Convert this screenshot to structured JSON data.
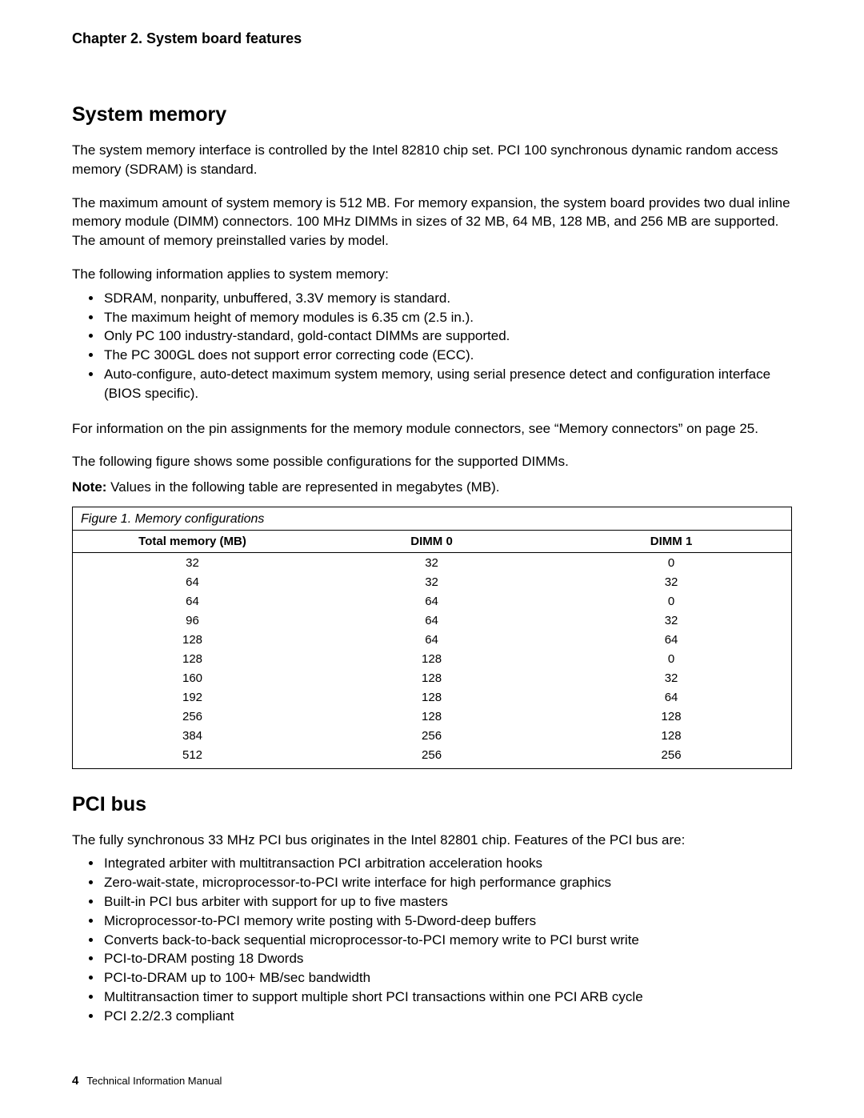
{
  "chapter": "Chapter 2.  System board features",
  "section1": {
    "heading": "System memory",
    "p1": "The system memory interface is controlled by the Intel 82810 chip set.  PCI 100 synchronous dynamic random access memory (SDRAM) is standard.",
    "p2": "The maximum amount of system memory is 512 MB.  For memory expansion, the system board provides two dual inline memory module (DIMM) connectors.  100 MHz DIMMs in sizes of 32 MB, 64 MB, 128 MB, and 256 MB are supported.  The amount of memory preinstalled varies by model.",
    "p3": "The following information applies to system memory:",
    "bullets": [
      "SDRAM, nonparity, unbuffered, 3.3V memory is standard.",
      "The maximum height of memory modules is 6.35 cm (2.5 in.).",
      "Only PC 100 industry-standard, gold-contact DIMMs are supported.",
      "The PC 300GL does not support error correcting code (ECC).",
      "Auto-configure, auto-detect maximum system memory, using serial presence detect and configuration interface (BIOS specific)."
    ],
    "p4": "For information on the pin assignments for the memory module connectors, see “Memory connectors” on page  25.",
    "p5": "The following figure shows some possible configurations for the supported DIMMs.",
    "noteLabel": "Note:",
    "noteText": "  Values in the following table are represented in megabytes (MB)."
  },
  "table": {
    "caption": "Figure 1.  Memory configurations",
    "columns": [
      "Total memory (MB)",
      "DIMM 0",
      "DIMM 1"
    ],
    "rows": [
      [
        "32",
        "32",
        "0"
      ],
      [
        "64",
        "32",
        "32"
      ],
      [
        "64",
        "64",
        "0"
      ],
      [
        "96",
        "64",
        "32"
      ],
      [
        "128",
        "64",
        "64"
      ],
      [
        "128",
        "128",
        "0"
      ],
      [
        "160",
        "128",
        "32"
      ],
      [
        "192",
        "128",
        "64"
      ],
      [
        "256",
        "128",
        "128"
      ],
      [
        "384",
        "256",
        "128"
      ],
      [
        "512",
        "256",
        "256"
      ]
    ],
    "colWidths": [
      "33.3%",
      "33.3%",
      "33.4%"
    ]
  },
  "section2": {
    "heading": "PCI bus",
    "p1": "The fully synchronous 33 MHz PCI bus originates in the Intel 82801 chip.  Features of the PCI bus are:",
    "bullets": [
      "Integrated arbiter with multitransaction PCI arbitration acceleration hooks",
      "Zero-wait-state, microprocessor-to-PCI write interface for high performance graphics",
      "Built-in PCI bus arbiter with support for up to five masters",
      "Microprocessor-to-PCI memory write posting with 5-Dword-deep buffers",
      "Converts back-to-back sequential microprocessor-to-PCI memory write to PCI burst write",
      "PCI-to-DRAM posting 18 Dwords",
      "PCI-to-DRAM up to 100+ MB/sec bandwidth",
      "Multitransaction timer to support multiple short PCI transactions within one PCI ARB cycle",
      "PCI 2.2/2.3 compliant"
    ]
  },
  "footer": {
    "pageNumber": "4",
    "manual": "Technical Information Manual"
  }
}
